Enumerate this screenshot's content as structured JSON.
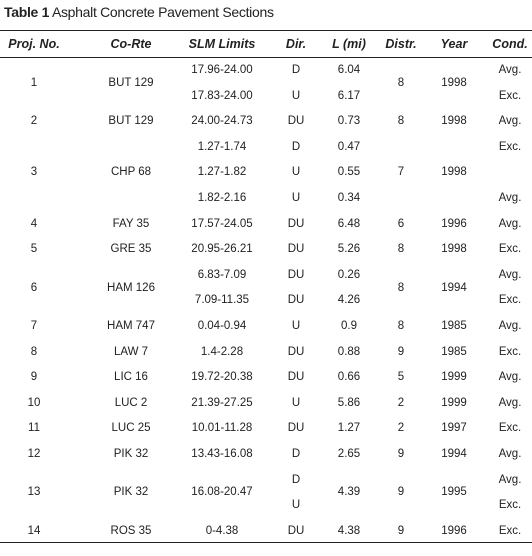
{
  "title": {
    "label": "Table 1",
    "text": "Asphalt Concrete Pavement Sections"
  },
  "table": {
    "columns": [
      "Proj. No.",
      "Co-Rte",
      "SLM Limits",
      "Dir.",
      "L (mi)",
      "Distr.",
      "Year",
      "Cond."
    ],
    "rows": [
      {
        "no": "1",
        "route": "BUT 129",
        "slm": [
          "17.96-24.00",
          "17.83-24.00"
        ],
        "dir": [
          "D",
          "U"
        ],
        "length": [
          "6.04",
          "6.17"
        ],
        "distr": "8",
        "year": "1998",
        "cond": [
          "Avg.",
          "Exc."
        ]
      },
      {
        "no": "2",
        "route": "BUT 129",
        "slm": [
          "24.00-24.73"
        ],
        "dir": [
          "DU"
        ],
        "length": [
          "0.73"
        ],
        "distr": "8",
        "year": "1998",
        "cond": [
          "Avg."
        ]
      },
      {
        "no": "3",
        "route": "CHP 68",
        "slm": [
          "1.27-1.74",
          "1.27-1.82",
          "1.82-2.16"
        ],
        "dir": [
          "D",
          "U",
          "U"
        ],
        "length": [
          "0.47",
          "0.55",
          "0.34"
        ],
        "distr": "7",
        "year": "1998",
        "cond": [
          "Exc.",
          null,
          "Avg."
        ]
      },
      {
        "no": "4",
        "route": "FAY 35",
        "slm": [
          "17.57-24.05"
        ],
        "dir": [
          "DU"
        ],
        "length": [
          "6.48"
        ],
        "distr": "6",
        "year": "1996",
        "cond": [
          "Avg."
        ]
      },
      {
        "no": "5",
        "route": "GRE 35",
        "slm": [
          "20.95-26.21"
        ],
        "dir": [
          "DU"
        ],
        "length": [
          "5.26"
        ],
        "distr": "8",
        "year": "1998",
        "cond": [
          "Exc."
        ]
      },
      {
        "no": "6",
        "route": "HAM 126",
        "slm": [
          "6.83-7.09",
          "7.09-11.35"
        ],
        "dir": [
          "DU",
          "DU"
        ],
        "length": [
          "0.26",
          "4.26"
        ],
        "distr": "8",
        "year": "1994",
        "cond": [
          "Avg.",
          "Exc."
        ]
      },
      {
        "no": "7",
        "route": "HAM 747",
        "slm": [
          "0.04-0.94"
        ],
        "dir": [
          "U"
        ],
        "length": [
          "0.9"
        ],
        "distr": "8",
        "year": "1985",
        "cond": [
          "Avg."
        ]
      },
      {
        "no": "8",
        "route": "LAW 7",
        "slm": [
          "1.4-2.28"
        ],
        "dir": [
          "DU"
        ],
        "length": [
          "0.88"
        ],
        "distr": "9",
        "year": "1985",
        "cond": [
          "Exc."
        ]
      },
      {
        "no": "9",
        "route": "LIC 16",
        "slm": [
          "19.72-20.38"
        ],
        "dir": [
          "DU"
        ],
        "length": [
          "0.66"
        ],
        "distr": "5",
        "year": "1999",
        "cond": [
          "Avg."
        ]
      },
      {
        "no": "10",
        "route": "LUC 2",
        "slm": [
          "21.39-27.25"
        ],
        "dir": [
          "U"
        ],
        "length": [
          "5.86"
        ],
        "distr": "2",
        "year": "1999",
        "cond": [
          "Avg."
        ]
      },
      {
        "no": "11",
        "route": "LUC 25",
        "slm": [
          "10.01-11.28"
        ],
        "dir": [
          "DU"
        ],
        "length": [
          "1.27"
        ],
        "distr": "2",
        "year": "1997",
        "cond": [
          "Exc."
        ]
      },
      {
        "no": "12",
        "route": "PIK 32",
        "slm": [
          "13.43-16.08"
        ],
        "dir": [
          "D"
        ],
        "length": [
          "2.65"
        ],
        "distr": "9",
        "year": "1994",
        "cond": [
          "Avg."
        ]
      },
      {
        "no": "13",
        "route": "PIK 32",
        "slm": "16.08-20.47",
        "dir": [
          "D",
          "U"
        ],
        "length": "4.39",
        "distr": "9",
        "year": "1995",
        "cond": [
          "Avg.",
          "Exc."
        ]
      },
      {
        "no": "14",
        "route": "ROS 35",
        "slm": [
          "0-4.38"
        ],
        "dir": [
          "DU"
        ],
        "length": [
          "4.38"
        ],
        "distr": "9",
        "year": "1996",
        "cond": [
          "Exc."
        ]
      }
    ]
  }
}
